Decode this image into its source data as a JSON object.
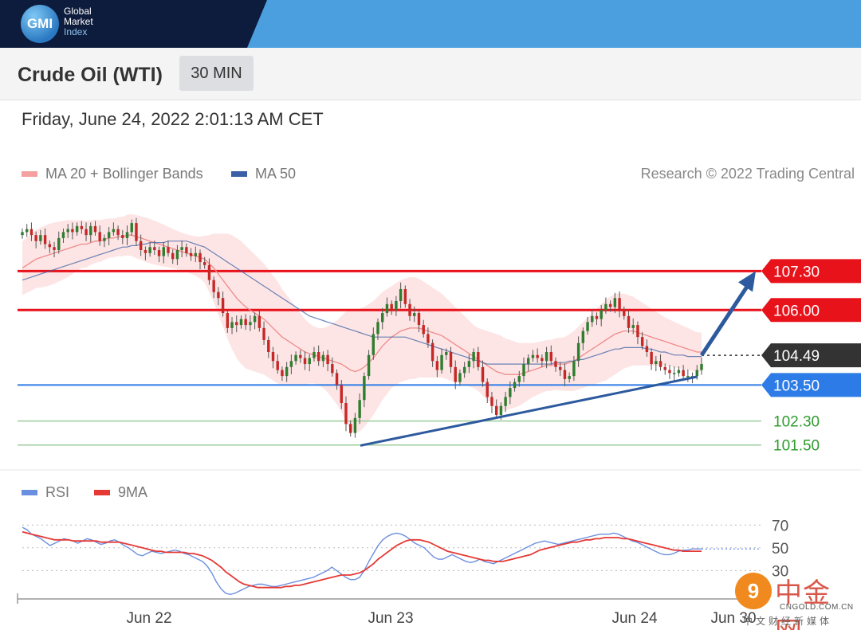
{
  "logo": {
    "badge": "GMI",
    "line1": "Global",
    "line2": "Market",
    "line3": "Index"
  },
  "header": {
    "title": "Crude Oil (WTI)",
    "timeframe": "30 MIN"
  },
  "datetime": "Friday, June 24, 2022 2:01:13 AM CET",
  "legend": {
    "ma20_label": "MA 20 + Bollinger Bands",
    "ma50_label": "MA 50",
    "credit": "Research © 2022 Trading Central",
    "rsi_label": "RSI",
    "ma9_label": "9MA"
  },
  "watermark": {
    "badge": "9",
    "name": "中金网",
    "url": "CNGOLD.COM.CN",
    "tagline": "中文财经新媒体"
  },
  "colors": {
    "resistance": "#e8121b",
    "current": "#333333",
    "support": "#2d7be6",
    "target": "#2f9c2f",
    "ma20": "#f08a8a",
    "ma50": "#3a5fa4",
    "band": "#fde0e0",
    "candle_up": "#2f7d2f",
    "candle_down": "#c62828",
    "rsi": "#6b8fe0",
    "ma9": "#e53935",
    "trend_arrow": "#2d5a9e"
  },
  "chart_data": [
    {
      "type": "candlestick",
      "title": "Crude Oil (WTI)",
      "timeframe": "30 MIN",
      "x_ticks": [
        "Jun 22",
        "Jun 23",
        "Jun 24",
        "Jun 30"
      ],
      "ylim": [
        101.2,
        109.7
      ],
      "levels": [
        {
          "value": 107.3,
          "label": "107.30",
          "kind": "resistance"
        },
        {
          "value": 106.0,
          "label": "106.00",
          "kind": "resistance"
        },
        {
          "value": 104.49,
          "label": "104.49",
          "kind": "current"
        },
        {
          "value": 103.5,
          "label": "103.50",
          "kind": "support"
        },
        {
          "value": 102.3,
          "label": "102.30",
          "kind": "target"
        },
        {
          "value": 101.5,
          "label": "101.50",
          "kind": "target"
        }
      ],
      "closes": [
        108.6,
        108.7,
        108.5,
        108.3,
        108.5,
        108.2,
        108.1,
        108.0,
        108.4,
        108.6,
        108.7,
        108.6,
        108.8,
        108.7,
        108.5,
        108.8,
        108.6,
        108.3,
        108.4,
        108.6,
        108.7,
        108.5,
        108.4,
        108.6,
        108.9,
        108.3,
        108.0,
        107.9,
        108.1,
        108.0,
        107.8,
        108.1,
        107.9,
        107.7,
        108.0,
        108.1,
        107.9,
        107.8,
        107.9,
        107.6,
        107.5,
        107.0,
        106.6,
        106.4,
        105.9,
        105.4,
        105.6,
        105.5,
        105.7,
        105.5,
        105.6,
        105.8,
        105.4,
        105.0,
        104.6,
        104.3,
        104.0,
        103.8,
        104.1,
        104.3,
        104.5,
        104.4,
        104.2,
        104.4,
        104.6,
        104.3,
        104.5,
        104.2,
        103.9,
        103.5,
        102.9,
        102.2,
        101.9,
        102.4,
        103.0,
        103.8,
        104.5,
        105.2,
        105.6,
        105.9,
        106.2,
        106.0,
        106.3,
        106.7,
        106.2,
        105.8,
        105.9,
        105.5,
        105.2,
        104.9,
        104.3,
        104.0,
        104.5,
        104.6,
        104.1,
        103.6,
        103.9,
        104.1,
        104.3,
        104.6,
        104.1,
        103.6,
        103.1,
        102.8,
        102.5,
        102.8,
        103.1,
        103.4,
        103.6,
        103.8,
        104.2,
        104.4,
        104.5,
        104.4,
        104.3,
        104.6,
        104.3,
        104.1,
        104.0,
        103.7,
        103.8,
        104.3,
        104.9,
        105.3,
        105.6,
        105.8,
        105.7,
        106.0,
        106.2,
        106.1,
        106.4,
        106.0,
        105.8,
        105.4,
        105.5,
        105.1,
        104.8,
        104.6,
        104.2,
        104.3,
        104.1,
        104.0,
        103.9,
        103.9,
        104.0,
        103.8,
        103.8,
        103.8,
        104.0,
        104.2
      ],
      "ma20": [
        107.4,
        107.5,
        107.6,
        107.7,
        107.75,
        107.8,
        107.85,
        107.9,
        107.95,
        108.0,
        108.05,
        108.1,
        108.15,
        108.2,
        108.2,
        108.25,
        108.3,
        108.3,
        108.35,
        108.4,
        108.4,
        108.45,
        108.45,
        108.5,
        108.5,
        108.45,
        108.4,
        108.35,
        108.3,
        108.25,
        108.2,
        108.15,
        108.1,
        108.05,
        108.0,
        107.95,
        107.9,
        107.85,
        107.8,
        107.75,
        107.7,
        107.55,
        107.4,
        107.2,
        107.0,
        106.8,
        106.6,
        106.4,
        106.25,
        106.1,
        106.0,
        105.9,
        105.8,
        105.7,
        105.55,
        105.4,
        105.25,
        105.1,
        105.0,
        104.9,
        104.8,
        104.7,
        104.6,
        104.55,
        104.5,
        104.45,
        104.4,
        104.35,
        104.3,
        104.25,
        104.2,
        104.1,
        104.0,
        103.95,
        104.0,
        104.1,
        104.25,
        104.4,
        104.6,
        104.8,
        104.95,
        105.1,
        105.2,
        105.3,
        105.35,
        105.4,
        105.4,
        105.4,
        105.35,
        105.3,
        105.25,
        105.2,
        105.15,
        105.05,
        104.95,
        104.85,
        104.75,
        104.65,
        104.55,
        104.45,
        104.35,
        104.25,
        104.15,
        104.05,
        103.95,
        103.9,
        103.85,
        103.85,
        103.85,
        103.85,
        103.9,
        103.95,
        104.0,
        104.05,
        104.1,
        104.15,
        104.15,
        104.2,
        104.2,
        104.2,
        104.25,
        104.3,
        104.4,
        104.5,
        104.6,
        104.7,
        104.8,
        104.9,
        105.0,
        105.1,
        105.2,
        105.25,
        105.3,
        105.3,
        105.3,
        105.25,
        105.2,
        105.15,
        105.1,
        105.05,
        105.0,
        104.95,
        104.9,
        104.85,
        104.8,
        104.75,
        104.7,
        104.65,
        104.6,
        104.6
      ],
      "ma50": [
        107.0,
        107.05,
        107.1,
        107.15,
        107.2,
        107.25,
        107.3,
        107.35,
        107.4,
        107.45,
        107.5,
        107.55,
        107.6,
        107.65,
        107.7,
        107.75,
        107.8,
        107.85,
        107.9,
        107.95,
        108.0,
        108.05,
        108.1,
        108.1,
        108.15,
        108.15,
        108.2,
        108.2,
        108.25,
        108.25,
        108.25,
        108.25,
        108.3,
        108.3,
        108.3,
        108.3,
        108.3,
        108.25,
        108.2,
        108.15,
        108.1,
        108.0,
        107.9,
        107.8,
        107.7,
        107.6,
        107.5,
        107.4,
        107.3,
        107.2,
        107.1,
        107.0,
        106.9,
        106.8,
        106.7,
        106.6,
        106.5,
        106.4,
        106.3,
        106.2,
        106.1,
        106.0,
        105.9,
        105.8,
        105.75,
        105.7,
        105.65,
        105.6,
        105.55,
        105.5,
        105.45,
        105.4,
        105.35,
        105.3,
        105.25,
        105.2,
        105.15,
        105.1,
        105.1,
        105.1,
        105.1,
        105.1,
        105.1,
        105.1,
        105.1,
        105.05,
        105.0,
        104.95,
        104.9,
        104.85,
        104.8,
        104.75,
        104.7,
        104.65,
        104.6,
        104.55,
        104.5,
        104.45,
        104.4,
        104.35,
        104.3,
        104.25,
        104.2,
        104.2,
        104.2,
        104.2,
        104.2,
        104.2,
        104.2,
        104.2,
        104.2,
        104.2,
        104.2,
        104.2,
        104.2,
        104.2,
        104.2,
        104.25,
        104.25,
        104.25,
        104.3,
        104.3,
        104.35,
        104.35,
        104.4,
        104.45,
        104.5,
        104.55,
        104.6,
        104.65,
        104.7,
        104.7,
        104.75,
        104.75,
        104.75,
        104.75,
        104.75,
        104.7,
        104.7,
        104.65,
        104.6,
        104.6,
        104.55,
        104.5,
        104.5,
        104.5,
        104.45,
        104.45,
        104.45,
        104.45
      ],
      "band_width": [
        0.9,
        0.92,
        0.95,
        0.97,
        1.0,
        1.02,
        1.03,
        1.02,
        1.0,
        0.98,
        0.95,
        0.9,
        0.85,
        0.8,
        0.78,
        0.75,
        0.72,
        0.7,
        0.68,
        0.66,
        0.65,
        0.65,
        0.66,
        0.68,
        0.7,
        0.72,
        0.73,
        0.74,
        0.74,
        0.73,
        0.72,
        0.7,
        0.68,
        0.66,
        0.64,
        0.63,
        0.63,
        0.64,
        0.66,
        0.7,
        0.78,
        0.95,
        1.15,
        1.35,
        1.55,
        1.75,
        1.9,
        2.0,
        2.05,
        2.05,
        2.0,
        1.95,
        1.9,
        1.85,
        1.8,
        1.75,
        1.7,
        1.6,
        1.5,
        1.4,
        1.3,
        1.2,
        1.1,
        1.0,
        0.95,
        0.95,
        1.0,
        1.1,
        1.25,
        1.4,
        1.6,
        1.85,
        2.0,
        2.05,
        2.05,
        2.0,
        1.95,
        1.9,
        1.85,
        1.8,
        1.75,
        1.7,
        1.7,
        1.7,
        1.7,
        1.7,
        1.7,
        1.65,
        1.6,
        1.55,
        1.5,
        1.45,
        1.4,
        1.35,
        1.3,
        1.25,
        1.2,
        1.15,
        1.1,
        1.05,
        1.05,
        1.1,
        1.15,
        1.2,
        1.25,
        1.25,
        1.2,
        1.15,
        1.1,
        1.05,
        1.0,
        0.95,
        0.9,
        0.88,
        0.86,
        0.85,
        0.85,
        0.86,
        0.88,
        0.9,
        0.95,
        1.0,
        1.05,
        1.1,
        1.15,
        1.2,
        1.25,
        1.3,
        1.35,
        1.35,
        1.35,
        1.3,
        1.25,
        1.2,
        1.15,
        1.1,
        1.05,
        1.0,
        0.95,
        0.9,
        0.85,
        0.8,
        0.78,
        0.76,
        0.74,
        0.72,
        0.7,
        0.68,
        0.66,
        0.65
      ]
    },
    {
      "type": "line",
      "title": "RSI",
      "y_ticks": [
        70,
        50,
        30
      ],
      "ylim": [
        5,
        80
      ],
      "series": [
        {
          "name": "RSI",
          "values": [
            68,
            66,
            62,
            60,
            58,
            55,
            52,
            54,
            56,
            58,
            57,
            56,
            54,
            56,
            58,
            57,
            55,
            53,
            54,
            56,
            57,
            55,
            52,
            50,
            47,
            44,
            43,
            45,
            47,
            46,
            45,
            46,
            47,
            48,
            47,
            45,
            44,
            42,
            40,
            38,
            34,
            28,
            20,
            14,
            10,
            9,
            10,
            12,
            14,
            16,
            17,
            18,
            18,
            17,
            16,
            16,
            17,
            18,
            19,
            20,
            21,
            22,
            23,
            24,
            26,
            28,
            30,
            33,
            30,
            27,
            24,
            22,
            22,
            24,
            30,
            38,
            45,
            52,
            57,
            60,
            62,
            63,
            62,
            60,
            57,
            54,
            52,
            50,
            46,
            42,
            40,
            40,
            42,
            44,
            42,
            40,
            38,
            37,
            38,
            40,
            38,
            37,
            36,
            38,
            40,
            42,
            44,
            46,
            48,
            50,
            52,
            54,
            55,
            56,
            55,
            54,
            53,
            54,
            55,
            56,
            57,
            58,
            59,
            60,
            61,
            62,
            62,
            62,
            63,
            62,
            60,
            58,
            56,
            55,
            53,
            51,
            49,
            47,
            45,
            44,
            44,
            45,
            47,
            48,
            48,
            49,
            49,
            49
          ]
        },
        {
          "name": "9MA",
          "values": [
            64,
            63,
            62,
            61,
            60,
            59,
            58,
            57,
            57,
            57,
            57,
            56,
            56,
            56,
            56,
            56,
            56,
            55,
            55,
            55,
            55,
            55,
            54,
            53,
            52,
            51,
            50,
            49,
            48,
            47,
            47,
            46,
            46,
            46,
            46,
            46,
            45,
            45,
            44,
            43,
            41,
            39,
            36,
            33,
            29,
            26,
            23,
            20,
            18,
            17,
            16,
            15,
            15,
            15,
            15,
            15,
            15,
            16,
            16,
            17,
            17,
            18,
            19,
            20,
            21,
            22,
            23,
            24,
            25,
            26,
            26,
            26,
            27,
            28,
            30,
            33,
            36,
            40,
            43,
            46,
            49,
            52,
            54,
            56,
            57,
            57,
            57,
            56,
            55,
            53,
            51,
            49,
            47,
            46,
            45,
            44,
            43,
            42,
            41,
            40,
            39,
            39,
            38,
            38,
            38,
            39,
            40,
            41,
            42,
            43,
            44,
            46,
            48,
            49,
            50,
            51,
            52,
            53,
            54,
            55,
            55,
            56,
            57,
            57,
            58,
            58,
            59,
            59,
            59,
            59,
            58,
            58,
            57,
            56,
            55,
            54,
            53,
            52,
            51,
            50,
            49,
            48,
            48,
            47,
            47,
            47,
            47,
            47
          ]
        }
      ]
    }
  ]
}
